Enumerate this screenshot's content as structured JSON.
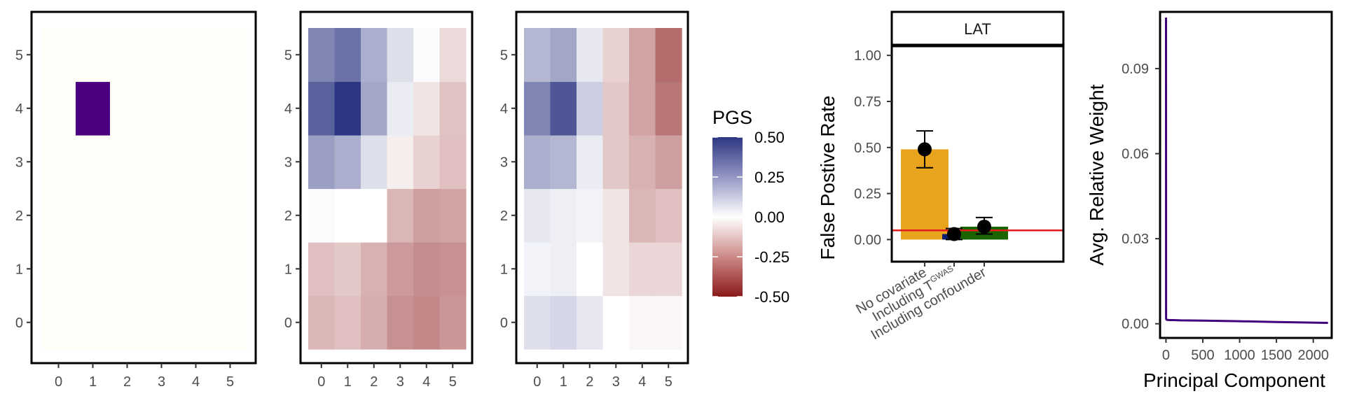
{
  "chart_data": [
    {
      "type": "heatmap",
      "x_ticks": [
        "0",
        "1",
        "2",
        "3",
        "4",
        "5"
      ],
      "y_ticks": [
        "0",
        "1",
        "2",
        "3",
        "4",
        "5"
      ],
      "cell_colors": [
        [
          "#fffff9",
          "#fffff9",
          "#fffff9",
          "#fffff9",
          "#fffff9",
          "#fffff9"
        ],
        [
          "#fffff9",
          "#fffff9",
          "#fffff9",
          "#fffff9",
          "#fffff9",
          "#fffff9"
        ],
        [
          "#fffff9",
          "#fffff9",
          "#fffff9",
          "#fffff9",
          "#fffff9",
          "#fffff9"
        ],
        [
          "#fffff9",
          "#fffff9",
          "#fffff9",
          "#fffff9",
          "#fffff9",
          "#fffff9"
        ],
        [
          "#fffff9",
          "#4b0082",
          "#fffff9",
          "#fffff9",
          "#fffff9",
          "#fffff9"
        ],
        [
          "#fffff9",
          "#fffff9",
          "#fffff9",
          "#fffff9",
          "#fffff9",
          "#fffff9"
        ]
      ]
    },
    {
      "type": "heatmap",
      "x_ticks": [
        "0",
        "1",
        "2",
        "3",
        "4",
        "5"
      ],
      "y_ticks": [
        "0",
        "1",
        "2",
        "3",
        "4",
        "5"
      ],
      "values": [
        [
          -0.16,
          -0.14,
          -0.18,
          -0.24,
          -0.26,
          -0.23
        ],
        [
          -0.14,
          -0.12,
          -0.17,
          -0.22,
          -0.25,
          -0.24
        ],
        [
          0.01,
          0.0,
          0.0,
          -0.16,
          -0.21,
          -0.2
        ],
        [
          0.24,
          0.2,
          0.08,
          -0.04,
          -0.1,
          -0.14
        ],
        [
          0.39,
          0.5,
          0.22,
          0.05,
          -0.06,
          -0.13
        ],
        [
          0.3,
          0.35,
          0.2,
          0.08,
          0.01,
          -0.08
        ]
      ]
    },
    {
      "type": "heatmap",
      "x_ticks": [
        "0",
        "1",
        "2",
        "3",
        "4",
        "5"
      ],
      "y_ticks": [
        "0",
        "1",
        "2",
        "3",
        "4",
        "5"
      ],
      "values": [
        [
          0.08,
          0.1,
          0.06,
          0.0,
          -0.02,
          -0.02
        ],
        [
          0.03,
          0.04,
          0.0,
          -0.06,
          -0.09,
          -0.09
        ],
        [
          0.06,
          0.04,
          0.03,
          -0.06,
          -0.16,
          -0.14
        ],
        [
          0.2,
          0.18,
          0.05,
          -0.12,
          -0.17,
          -0.21
        ],
        [
          0.3,
          0.42,
          0.12,
          -0.12,
          -0.2,
          -0.3
        ],
        [
          0.18,
          0.22,
          0.06,
          -0.1,
          -0.2,
          -0.32
        ]
      ]
    },
    {
      "type": "legend",
      "title": "PGS",
      "scale": "diverging",
      "range": [
        -0.5,
        0.5
      ],
      "labels": [
        "0.50",
        "0.25",
        "0.00",
        "-0.25",
        "-0.50"
      ],
      "colors": {
        "high": "#2c3682",
        "mid": "#ffffff",
        "low": "#8b1a1a"
      }
    },
    {
      "type": "bar",
      "facet_label": "LAT",
      "ylabel": "False Postive Rate",
      "ylim": [
        -0.12,
        1.05
      ],
      "y_ticks": [
        "0.00",
        "0.25",
        "0.50",
        "0.75",
        "1.00"
      ],
      "categories": [
        "No covariate",
        "Including T",
        "Including confounder"
      ],
      "category_superscript": "GWAS",
      "bars": [
        {
          "value": 0.49,
          "error_low": 0.39,
          "error_high": 0.59,
          "color": "#e8a41c"
        },
        {
          "value": 0.03,
          "error_low": 0.0,
          "error_high": 0.06,
          "color": "#0c1e6e"
        },
        {
          "value": 0.07,
          "error_low": 0.03,
          "error_high": 0.12,
          "color": "#1b6400"
        }
      ],
      "reference_line": {
        "y": 0.05,
        "color": "#e31a1c"
      }
    },
    {
      "type": "line",
      "xlabel": "Principal Component",
      "ylabel": "Avg. Relative Weight",
      "xlim": [
        -80,
        2250
      ],
      "ylim": [
        -0.005,
        0.11
      ],
      "x_ticks": [
        "0",
        "500",
        "1000",
        "1500",
        "2000"
      ],
      "y_ticks": [
        "0.00",
        "0.03",
        "0.06",
        "0.09"
      ],
      "line_color": "#3f007d",
      "series": [
        {
          "x": [
            1,
            2,
            3,
            5,
            10,
            50,
            100,
            200,
            500,
            1000,
            1500,
            2000,
            2200
          ],
          "y": [
            0.108,
            0.002,
            0.0018,
            0.0016,
            0.0014,
            0.0013,
            0.0013,
            0.0012,
            0.0011,
            0.0009,
            0.0006,
            0.0004,
            0.0003
          ]
        }
      ]
    }
  ]
}
